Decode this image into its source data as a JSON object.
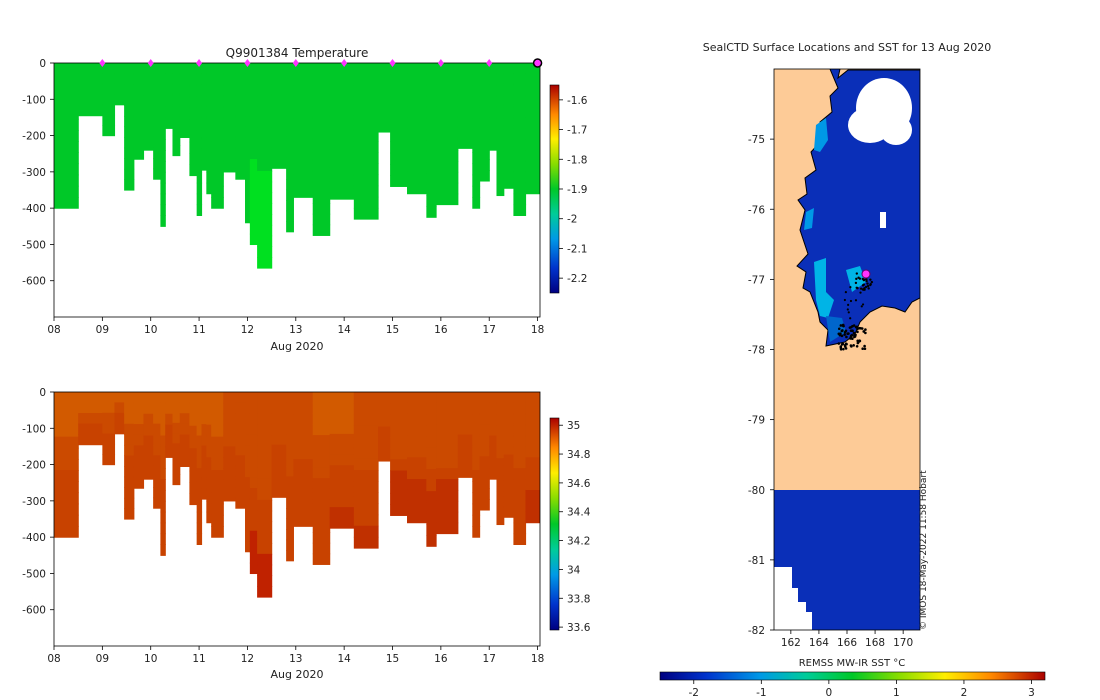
{
  "chart_data": [
    {
      "type": "heatmap",
      "id": "temperature",
      "title": "Q9901384  Temperature",
      "xlabel": "Aug 2020",
      "x_ticks": [
        "08",
        "09",
        "10",
        "11",
        "12",
        "13",
        "14",
        "15",
        "16",
        "17",
        "18"
      ],
      "y_ticks": [
        "0",
        "-100",
        "-200",
        "-300",
        "-400",
        "-500",
        "-600"
      ],
      "ylim": [
        -700,
        0
      ],
      "xlim": [
        8,
        18.05
      ],
      "colorbar": {
        "ticks": [
          "-1.6",
          "-1.7",
          "-1.8",
          "-1.9",
          "-2",
          "-2.1",
          "-2.2"
        ],
        "range": [
          -2.25,
          -1.55
        ]
      },
      "profile_markers_day": [
        9,
        10,
        11,
        12,
        13,
        14,
        15,
        16,
        17
      ],
      "current_marker_day": 18,
      "depth_profile": [
        {
          "x0": 8.0,
          "x1": 8.5,
          "depth": 400
        },
        {
          "x0": 8.5,
          "x1": 9.0,
          "depth": 145
        },
        {
          "x0": 9.0,
          "x1": 9.25,
          "depth": 200
        },
        {
          "x0": 9.25,
          "x1": 9.45,
          "depth": 115
        },
        {
          "x0": 9.45,
          "x1": 9.65,
          "depth": 350
        },
        {
          "x0": 9.65,
          "x1": 9.85,
          "depth": 265
        },
        {
          "x0": 9.85,
          "x1": 10.05,
          "depth": 240
        },
        {
          "x0": 10.05,
          "x1": 10.2,
          "depth": 320
        },
        {
          "x0": 10.2,
          "x1": 10.3,
          "depth": 450
        },
        {
          "x0": 10.3,
          "x1": 10.45,
          "depth": 180
        },
        {
          "x0": 10.45,
          "x1": 10.6,
          "depth": 255
        },
        {
          "x0": 10.6,
          "x1": 10.8,
          "depth": 205
        },
        {
          "x0": 10.8,
          "x1": 10.95,
          "depth": 310
        },
        {
          "x0": 10.95,
          "x1": 11.05,
          "depth": 420
        },
        {
          "x0": 11.05,
          "x1": 11.15,
          "depth": 295
        },
        {
          "x0": 11.15,
          "x1": 11.25,
          "depth": 360
        },
        {
          "x0": 11.25,
          "x1": 11.5,
          "depth": 400
        },
        {
          "x0": 11.5,
          "x1": 11.75,
          "depth": 300
        },
        {
          "x0": 11.75,
          "x1": 11.95,
          "depth": 320
        },
        {
          "x0": 11.95,
          "x1": 12.05,
          "depth": 440
        },
        {
          "x0": 12.05,
          "x1": 12.2,
          "depth": 500
        },
        {
          "x0": 12.2,
          "x1": 12.5,
          "depth": 565
        },
        {
          "x0": 12.5,
          "x1": 12.8,
          "depth": 290
        },
        {
          "x0": 12.8,
          "x1": 12.95,
          "depth": 465
        },
        {
          "x0": 12.95,
          "x1": 13.35,
          "depth": 370
        },
        {
          "x0": 13.35,
          "x1": 13.7,
          "depth": 475
        },
        {
          "x0": 13.7,
          "x1": 14.2,
          "depth": 375
        },
        {
          "x0": 14.2,
          "x1": 14.7,
          "depth": 430
        },
        {
          "x0": 14.7,
          "x1": 14.95,
          "depth": 190
        },
        {
          "x0": 14.95,
          "x1": 15.3,
          "depth": 340
        },
        {
          "x0": 15.3,
          "x1": 15.7,
          "depth": 360
        },
        {
          "x0": 15.7,
          "x1": 15.9,
          "depth": 425
        },
        {
          "x0": 15.9,
          "x1": 16.35,
          "depth": 390
        },
        {
          "x0": 16.35,
          "x1": 16.65,
          "depth": 235
        },
        {
          "x0": 16.65,
          "x1": 16.8,
          "depth": 400
        },
        {
          "x0": 16.8,
          "x1": 17.0,
          "depth": 325
        },
        {
          "x0": 17.0,
          "x1": 17.15,
          "depth": 240
        },
        {
          "x0": 17.15,
          "x1": 17.3,
          "depth": 365
        },
        {
          "x0": 17.3,
          "x1": 17.5,
          "depth": 345
        },
        {
          "x0": 17.5,
          "x1": 17.75,
          "depth": 420
        },
        {
          "x0": 17.75,
          "x1": 18.05,
          "depth": 360
        }
      ]
    },
    {
      "type": "heatmap",
      "id": "salinity",
      "title": "",
      "xlabel": "Aug 2020",
      "x_ticks": [
        "08",
        "09",
        "10",
        "11",
        "12",
        "13",
        "14",
        "15",
        "16",
        "17",
        "18"
      ],
      "y_ticks": [
        "0",
        "-100",
        "-200",
        "-300",
        "-400",
        "-500",
        "-600"
      ],
      "ylim": [
        -700,
        0
      ],
      "xlim": [
        8,
        18.05
      ],
      "colorbar": {
        "ticks": [
          "35",
          "34.8",
          "34.6",
          "34.4",
          "34.2",
          "34",
          "33.8",
          "33.6"
        ],
        "range": [
          33.58,
          35.05
        ]
      },
      "depth_profile": "same as temperature"
    },
    {
      "type": "heatmap",
      "id": "sst-map",
      "title": "SealCTD Surface Locations and SST for 13 Aug 2020",
      "x_ticks": [
        "162",
        "164",
        "166",
        "168",
        "170"
      ],
      "y_ticks": [
        "-75",
        "-76",
        "-77",
        "-78",
        "-79",
        "-80",
        "-81",
        "-82"
      ],
      "xlim": [
        160.8,
        171.2
      ],
      "ylim": [
        -82,
        -74
      ],
      "colorbar": {
        "label": "REMSS MW-IR SST °C",
        "ticks": [
          "-2",
          "-1",
          "0",
          "1",
          "2",
          "3"
        ],
        "range": [
          -2.5,
          3.2
        ]
      },
      "current_location": {
        "lon": 167.2,
        "lat": -77.0
      }
    }
  ],
  "credit": "© IMOS 18-May-2022 11:58 Hobart"
}
